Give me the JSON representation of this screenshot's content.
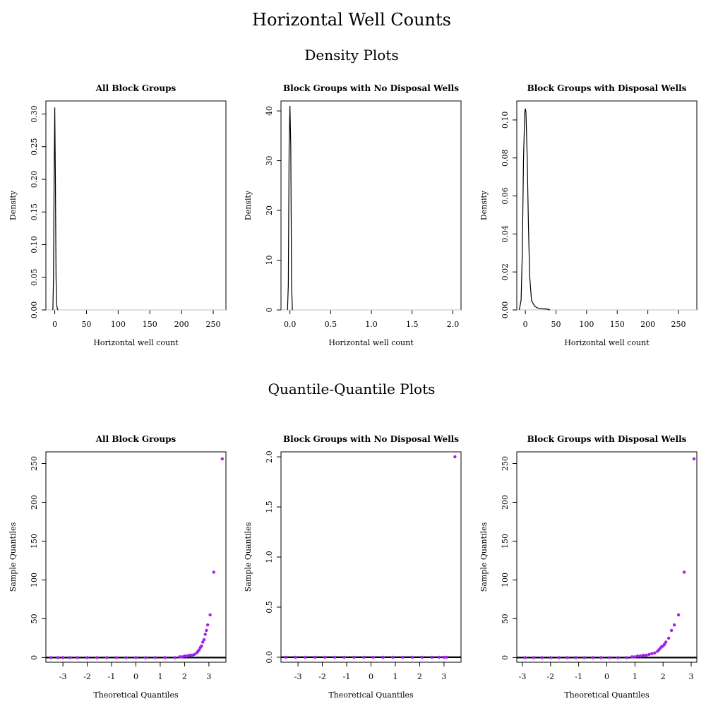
{
  "figure": {
    "title": "Horizontal Well Counts",
    "density_section_title": "Density Plots",
    "qq_section_title": "Quantile-Quantile Plots"
  },
  "colors": {
    "density_line": "#000000",
    "baseline": "#bebebe",
    "qq_points": "#a020f0",
    "qq_line": "#000000"
  },
  "chart_data": [
    {
      "type": "line",
      "kind": "density",
      "title": "All Block Groups",
      "xlabel": "Horizontal well count",
      "ylabel": "Density",
      "xlim": [
        -14,
        270
      ],
      "ylim": [
        0,
        0.32
      ],
      "xticks": [
        0,
        50,
        100,
        150,
        200,
        250
      ],
      "yticks": [
        0.0,
        0.05,
        0.1,
        0.15,
        0.2,
        0.25,
        0.3
      ],
      "ytick_labels": [
        "0.00",
        "0.05",
        "0.10",
        "0.15",
        "0.20",
        "0.25",
        "0.30"
      ],
      "x": [
        -3,
        -2,
        -1,
        0,
        1,
        2,
        3,
        4,
        5
      ],
      "y": [
        0.0,
        0.05,
        0.2,
        0.31,
        0.2,
        0.05,
        0.008,
        0.002,
        0.0
      ]
    },
    {
      "type": "line",
      "kind": "density",
      "title": "Block Groups with No Disposal Wells",
      "xlabel": "Horizontal well count",
      "ylabel": "Density",
      "xlim": [
        -0.11,
        2.1
      ],
      "ylim": [
        0,
        42
      ],
      "xticks": [
        0,
        0.5,
        1,
        1.5,
        2
      ],
      "xtick_labels": [
        "0.0",
        "0.5",
        "1.0",
        "1.5",
        "2.0"
      ],
      "yticks": [
        0,
        10,
        20,
        30,
        40
      ],
      "x": [
        -0.03,
        -0.02,
        -0.01,
        0,
        0.01,
        0.02,
        0.03
      ],
      "y": [
        0.0,
        5.0,
        33.0,
        41.0,
        33.0,
        5.0,
        0.0
      ]
    },
    {
      "type": "line",
      "kind": "density",
      "title": "Block Groups with Disposal Wells",
      "xlabel": "Horizontal well count",
      "ylabel": "Density",
      "xlim": [
        -14,
        280
      ],
      "ylim": [
        0,
        0.11
      ],
      "xticks": [
        0,
        50,
        100,
        150,
        200,
        250
      ],
      "yticks": [
        0.0,
        0.02,
        0.04,
        0.06,
        0.08,
        0.1
      ],
      "ytick_labels": [
        "0.00",
        "0.02",
        "0.04",
        "0.06",
        "0.08",
        "0.10"
      ],
      "x": [
        -10,
        -7,
        -5,
        -3,
        -1,
        0,
        1,
        3,
        5,
        7,
        10,
        15,
        20,
        30,
        35,
        40
      ],
      "y": [
        0.0,
        0.005,
        0.03,
        0.08,
        0.104,
        0.106,
        0.104,
        0.08,
        0.045,
        0.018,
        0.005,
        0.002,
        0.001,
        0.0005,
        0.0005,
        0.0
      ]
    },
    {
      "type": "scatter",
      "kind": "qq",
      "title": "All Block Groups",
      "xlabel": "Theoretical Quantiles",
      "ylabel": "Sample Quantiles",
      "xlim": [
        -3.7,
        3.7
      ],
      "ylim": [
        -6,
        265
      ],
      "xticks": [
        -3,
        -2,
        -1,
        0,
        1,
        2,
        3
      ],
      "yticks": [
        0,
        50,
        100,
        150,
        200,
        250
      ],
      "x": [
        -3.5,
        -3.2,
        -3.0,
        -2.7,
        -2.4,
        -2.0,
        -1.6,
        -1.2,
        -0.8,
        -0.4,
        0.0,
        0.4,
        0.8,
        1.2,
        1.6,
        1.8,
        1.9,
        2.0,
        2.1,
        2.2,
        2.3,
        2.4,
        2.5,
        2.55,
        2.6,
        2.65,
        2.7,
        2.75,
        2.8,
        2.85,
        2.9,
        2.95,
        3.05,
        3.2,
        3.55
      ],
      "y": [
        0,
        0,
        0,
        0,
        0,
        0,
        0,
        0,
        0,
        0,
        0,
        0,
        0,
        0,
        0,
        1,
        1,
        2,
        2,
        3,
        3,
        4,
        6,
        8,
        10,
        13,
        15,
        20,
        23,
        30,
        35,
        42,
        55,
        110,
        256
      ]
    },
    {
      "type": "scatter",
      "kind": "qq",
      "title": "Block Groups with No Disposal Wells",
      "xlabel": "Theoretical Quantiles",
      "ylabel": "Sample Quantiles",
      "xlim": [
        -3.7,
        3.7
      ],
      "ylim": [
        -0.05,
        2.05
      ],
      "xticks": [
        -3,
        -2,
        -1,
        0,
        1,
        2,
        3
      ],
      "yticks": [
        0,
        0.5,
        1,
        1.5,
        2
      ],
      "ytick_labels": [
        "0.0",
        "0.5",
        "1.0",
        "1.5",
        "2.0"
      ],
      "x": [
        -3.5,
        -3.1,
        -2.7,
        -2.3,
        -1.9,
        -1.5,
        -1.1,
        -0.7,
        -0.3,
        0.1,
        0.5,
        0.9,
        1.3,
        1.7,
        2.1,
        2.5,
        2.8,
        3.0,
        3.1,
        3.45
      ],
      "y": [
        0,
        0,
        0,
        0,
        0,
        0,
        0,
        0,
        0,
        0,
        0,
        0,
        0,
        0,
        0,
        0,
        0,
        0,
        0,
        2
      ]
    },
    {
      "type": "scatter",
      "kind": "qq",
      "title": "Block Groups with Disposal Wells",
      "xlabel": "Theoretical Quantiles",
      "ylabel": "Sample Quantiles",
      "xlim": [
        -3.2,
        3.2
      ],
      "ylim": [
        -6,
        265
      ],
      "xticks": [
        -3,
        -2,
        -1,
        0,
        1,
        2,
        3
      ],
      "yticks": [
        0,
        50,
        100,
        150,
        200,
        250
      ],
      "x": [
        -2.9,
        -2.6,
        -2.3,
        -2.0,
        -1.7,
        -1.4,
        -1.1,
        -0.8,
        -0.5,
        -0.2,
        0.1,
        0.4,
        0.7,
        0.9,
        1.0,
        1.1,
        1.2,
        1.3,
        1.4,
        1.5,
        1.6,
        1.7,
        1.8,
        1.85,
        1.9,
        1.95,
        2.0,
        2.05,
        2.1,
        2.2,
        2.3,
        2.4,
        2.55,
        2.75,
        3.1
      ],
      "y": [
        0,
        0,
        0,
        0,
        0,
        0,
        0,
        0,
        0,
        0,
        0,
        0,
        0,
        1,
        1,
        2,
        2,
        3,
        3,
        4,
        5,
        6,
        8,
        10,
        12,
        14,
        15,
        17,
        20,
        25,
        35,
        42,
        55,
        110,
        256
      ]
    }
  ]
}
